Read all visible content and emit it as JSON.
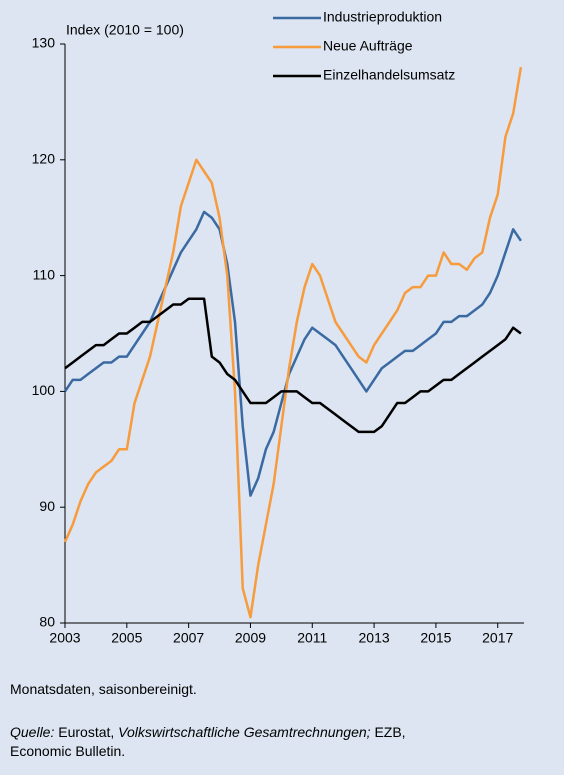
{
  "chart_data": {
    "type": "line",
    "y_label": "Index (2010 = 100)",
    "x": [
      2003,
      2003.25,
      2003.5,
      2003.75,
      2004,
      2004.25,
      2004.5,
      2004.75,
      2005,
      2005.25,
      2005.5,
      2005.75,
      2006,
      2006.25,
      2006.5,
      2006.75,
      2007,
      2007.25,
      2007.5,
      2007.75,
      2008,
      2008.25,
      2008.5,
      2008.75,
      2009,
      2009.25,
      2009.5,
      2009.75,
      2010,
      2010.25,
      2010.5,
      2010.75,
      2011,
      2011.25,
      2011.5,
      2011.75,
      2012,
      2012.25,
      2012.5,
      2012.75,
      2013,
      2013.25,
      2013.5,
      2013.75,
      2014,
      2014.25,
      2014.5,
      2014.75,
      2015,
      2015.25,
      2015.5,
      2015.75,
      2016,
      2016.25,
      2016.5,
      2016.75,
      2017,
      2017.25,
      2017.5,
      2017.75
    ],
    "series": [
      {
        "name": "Industrieproduktion",
        "color": "#3b6aa3",
        "values": [
          100,
          101,
          101,
          101.5,
          102,
          102.5,
          102.5,
          103,
          103,
          104,
          105,
          106,
          107.5,
          109,
          110.5,
          112,
          113,
          114,
          115.5,
          115,
          114,
          111,
          106,
          97,
          91,
          92.5,
          95,
          96.5,
          99,
          101.5,
          103,
          104.5,
          105.5,
          105,
          104.5,
          104,
          103,
          102,
          101,
          100,
          101,
          102,
          102.5,
          103,
          103.5,
          103.5,
          104,
          104.5,
          105,
          106,
          106,
          106.5,
          106.5,
          107,
          107.5,
          108.5,
          110,
          112,
          114,
          113
        ]
      },
      {
        "name": "Neue Aufträge",
        "color": "#f79b3c",
        "values": [
          87,
          88.5,
          90.5,
          92,
          93,
          93.5,
          94,
          95,
          95,
          99,
          101,
          103,
          106,
          109,
          112,
          116,
          118,
          120,
          119,
          118,
          115,
          110,
          100,
          83,
          80.5,
          85,
          88.5,
          92,
          97,
          102,
          106,
          109,
          111,
          110,
          108,
          106,
          105,
          104,
          103,
          102.5,
          104,
          105,
          106,
          107,
          108.5,
          109,
          109,
          110,
          110,
          112,
          111,
          111,
          110.5,
          111.5,
          112,
          115,
          117,
          122,
          124,
          128
        ]
      },
      {
        "name": "Einzelhandelsumsatz",
        "color": "#000000",
        "values": [
          102,
          102.5,
          103,
          103.5,
          104,
          104,
          104.5,
          105,
          105,
          105.5,
          106,
          106,
          106.5,
          107,
          107.5,
          107.5,
          108,
          108,
          108,
          103,
          102.5,
          101.5,
          101,
          100,
          99,
          99,
          99,
          99.5,
          100,
          100,
          100,
          99.5,
          99,
          99,
          98.5,
          98,
          97.5,
          97,
          96.5,
          96.5,
          96.5,
          97,
          98,
          99,
          99,
          99.5,
          100,
          100,
          100.5,
          101,
          101,
          101.5,
          102,
          102.5,
          103,
          103.5,
          104,
          104.5,
          105.5,
          105
        ]
      }
    ],
    "xlim": [
      2003,
      2017.85
    ],
    "xticks": [
      2003,
      2005,
      2007,
      2009,
      2011,
      2013,
      2015,
      2017
    ],
    "ylim": [
      80,
      130
    ],
    "yticks": [
      80,
      90,
      100,
      110,
      120,
      130
    ],
    "grid": false,
    "legend": "top-right"
  },
  "footer": {
    "note": "Monatsdaten, saisonbereinigt.",
    "source_label": "Quelle:",
    "source_1": "Eurostat,",
    "source_2": "Volkswirtschaftliche Gesamtrechnungen;",
    "source_3": "EZB,",
    "source_4": "Economic Bulletin."
  }
}
